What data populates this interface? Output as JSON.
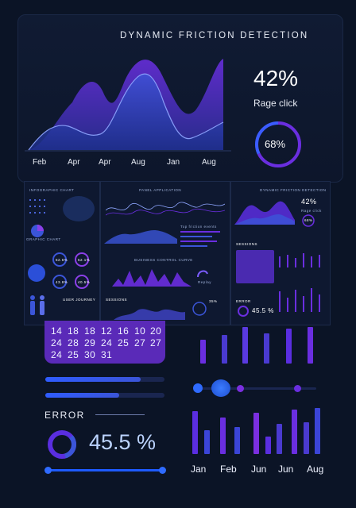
{
  "top": {
    "title": "DYNAMIC FRICTION DETECTION",
    "percent": "42%",
    "percent_label": "Rage click",
    "ring_value": "68%",
    "x_labels": [
      "Feb",
      "Apr",
      "Apr",
      "Aug",
      "Jan",
      "Aug"
    ]
  },
  "thumbs": {
    "infographic_title": "INFOGRAPHIC CHART",
    "graphic_chart": "GRAPHIC CHART",
    "panel_title": "PANEL APPLICATION",
    "top_friction": "Top friction events",
    "business_curve": "BUSINESS CONTROL CURVE",
    "replay": "Replay",
    "sessions_small": "SESSIONS",
    "dfd_title": "DYNAMIC FRICTION DETECTION",
    "dfd_percent": "42%",
    "dfd_label": "Rage click",
    "dfd_ring": "68%",
    "sessions_right": "SESSIONS",
    "error_small": "ERROR",
    "error_value_small": "45.5 %",
    "user_journey": "USER JOURNEY",
    "stat_core": "62.6%",
    "stat_sync": "52.1%",
    "stat_page": "43.8%",
    "stat_scroll": "40.5%",
    "pct_35": "35%"
  },
  "calendar": {
    "rows": [
      [
        "14",
        "18",
        "18",
        "12",
        "16",
        "10",
        "20"
      ],
      [
        "24",
        "28",
        "29",
        "24",
        "25",
        "27",
        "27"
      ],
      [
        "24",
        "25",
        "30",
        "31"
      ]
    ]
  },
  "error": {
    "label": "ERROR",
    "value": "45.5 %"
  },
  "bottom_months": [
    "Jan",
    "Feb",
    "Jun",
    "Jun",
    "Aug"
  ],
  "colors": {
    "background": "#0b1426",
    "accent_purple": "#7b2fe0",
    "accent_blue": "#2f6bff",
    "calendar_bg": "#5a2ab8"
  }
}
